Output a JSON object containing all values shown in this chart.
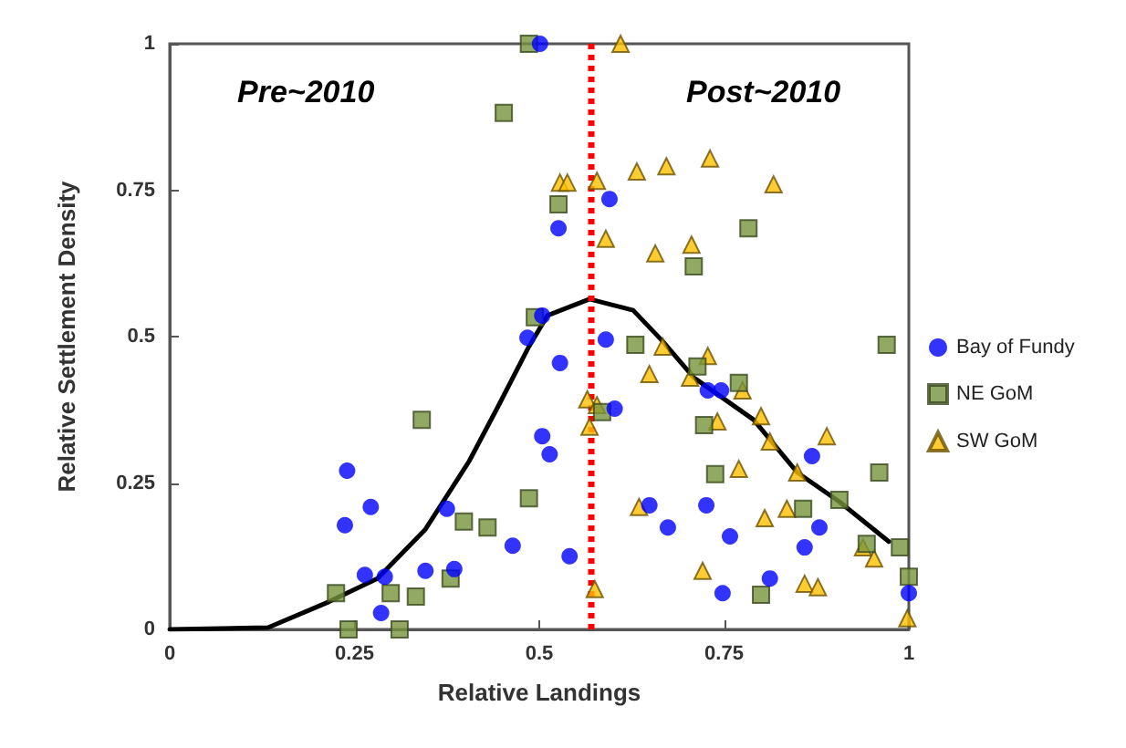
{
  "chart_data": {
    "type": "scatter",
    "xlabel": "Relative Landings",
    "ylabel": "Relative Settlement Density",
    "xlim": [
      0,
      1
    ],
    "xticks": [
      0,
      0.25,
      0.5,
      0.75,
      1
    ],
    "ylim": [
      0,
      1
    ],
    "yticks": [
      0,
      0.25,
      0.5,
      0.75,
      1
    ],
    "grid": false,
    "legend": "right",
    "annotations": [
      "Pre~2010",
      "Post~2010"
    ],
    "ref_lines": [
      {
        "axis": "x",
        "value": 0.57,
        "label": null,
        "color": "#ff0000",
        "line_style": "dotted"
      }
    ],
    "series": [
      {
        "name": "Bay of Fundy",
        "color": "#0000ff",
        "marker": "circle",
        "x": [
          0.501,
          0.595,
          0.526,
          0.504,
          0.484,
          0.59,
          0.528,
          0.602,
          0.504,
          0.514,
          0.649,
          0.726,
          0.674,
          0.758,
          0.464,
          0.541,
          0.728,
          0.746,
          0.869,
          0.879,
          0.859,
          0.812,
          0.748,
          1.0,
          0.24,
          0.272,
          0.237,
          0.375,
          0.264,
          0.291,
          0.346,
          0.385,
          0.286
        ],
        "values": [
          1.0,
          0.735,
          0.685,
          0.536,
          0.498,
          0.495,
          0.455,
          0.377,
          0.33,
          0.299,
          0.212,
          0.212,
          0.174,
          0.159,
          0.143,
          0.125,
          0.408,
          0.408,
          0.296,
          0.174,
          0.14,
          0.087,
          0.062,
          0.062,
          0.271,
          0.209,
          0.178,
          0.206,
          0.093,
          0.09,
          0.1,
          0.103,
          0.028
        ]
      },
      {
        "name": "NE GoM",
        "color": "#77933c",
        "marker": "square",
        "x": [
          0.486,
          0.452,
          0.526,
          0.494,
          0.783,
          0.709,
          0.63,
          0.97,
          0.714,
          0.77,
          0.585,
          0.723,
          0.738,
          0.486,
          0.96,
          0.906,
          0.857,
          0.943,
          0.988,
          1.0,
          0.8,
          0.341,
          0.398,
          0.43,
          0.225,
          0.299,
          0.333,
          0.38,
          0.242,
          0.311
        ],
        "values": [
          1.0,
          0.882,
          0.726,
          0.533,
          0.685,
          0.62,
          0.486,
          0.486,
          0.449,
          0.421,
          0.371,
          0.349,
          0.265,
          0.224,
          0.268,
          0.221,
          0.206,
          0.146,
          0.14,
          0.09,
          0.059,
          0.358,
          0.184,
          0.174,
          0.062,
          0.062,
          0.056,
          0.087,
          0.0,
          0.0
        ]
      },
      {
        "name": "SW GoM",
        "color": "#ffc000",
        "marker": "triangle",
        "x": [
          0.61,
          0.528,
          0.538,
          0.578,
          0.632,
          0.672,
          0.731,
          0.817,
          0.59,
          0.657,
          0.706,
          0.667,
          0.728,
          0.649,
          0.704,
          0.775,
          0.565,
          0.578,
          0.568,
          0.741,
          0.8,
          0.812,
          0.889,
          0.77,
          0.849,
          0.635,
          0.805,
          0.835,
          0.938,
          0.953,
          0.721,
          0.575,
          0.859,
          0.877,
          0.998
        ],
        "values": [
          1.0,
          0.763,
          0.763,
          0.766,
          0.782,
          0.791,
          0.804,
          0.76,
          0.667,
          0.642,
          0.657,
          0.483,
          0.467,
          0.436,
          0.43,
          0.408,
          0.393,
          0.383,
          0.346,
          0.355,
          0.364,
          0.321,
          0.33,
          0.274,
          0.268,
          0.209,
          0.19,
          0.206,
          0.14,
          0.121,
          0.1,
          0.069,
          0.078,
          0.072,
          0.019
        ]
      },
      {
        "type": "line",
        "color": "#000000",
        "marker": "none",
        "x": [
          0,
          0.133,
          0.215,
          0.281,
          0.346,
          0.405,
          0.444,
          0.486,
          0.511,
          0.568,
          0.627,
          0.667,
          0.709,
          0.79,
          0.849,
          0.906,
          0.973
        ],
        "values": [
          0,
          0.003,
          0.047,
          0.087,
          0.171,
          0.287,
          0.38,
          0.483,
          0.536,
          0.564,
          0.545,
          0.492,
          0.43,
          0.358,
          0.268,
          0.218,
          0.15
        ]
      }
    ]
  }
}
